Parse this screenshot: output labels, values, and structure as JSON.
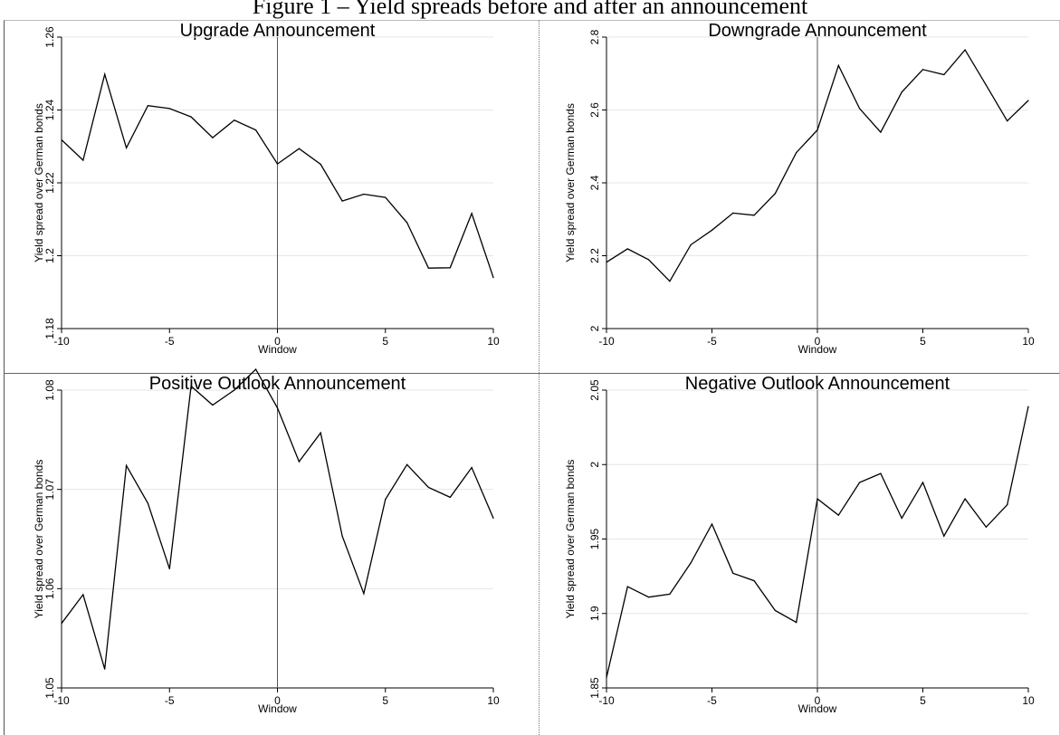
{
  "figure": {
    "title": "Figure 1 – Yield spreads before and after an announcement"
  },
  "colors": {
    "line": "#000000",
    "grid": "#e6e6e6",
    "event_line": "#555555"
  },
  "chart_data": [
    {
      "type": "line",
      "title": "Upgrade Announcement",
      "xlabel": "Window",
      "ylabel": "Yield spread over German bonds",
      "xlim": [
        -10,
        10
      ],
      "ylim": [
        1.18,
        1.26
      ],
      "xticks": [
        -10,
        -5,
        0,
        5,
        10
      ],
      "xtick_labels": [
        "-10",
        "-5",
        "0",
        "5",
        "10"
      ],
      "yticks": [
        1.18,
        1.2,
        1.22,
        1.24,
        1.26
      ],
      "ytick_labels": [
        "1.18",
        "1.2",
        "1.22",
        "1.24",
        "1.26"
      ],
      "event_x": 0,
      "grid": true,
      "x": [
        -10,
        -9,
        -8,
        -7,
        -6,
        -5,
        -4,
        -3,
        -2,
        -1,
        0,
        1,
        2,
        3,
        4,
        5,
        6,
        7,
        8,
        9,
        10
      ],
      "values": [
        1.2318,
        1.2262,
        1.2498,
        1.2296,
        1.2412,
        1.2404,
        1.2381,
        1.2324,
        1.2372,
        1.2345,
        1.2252,
        1.2294,
        1.2251,
        1.215,
        1.2169,
        1.216,
        1.2091,
        1.1966,
        1.1967,
        1.2116,
        1.194
      ]
    },
    {
      "type": "line",
      "title": "Downgrade Announcement",
      "xlabel": "Window",
      "ylabel": "Yield spread over German bonds",
      "xlim": [
        -10,
        10
      ],
      "ylim": [
        2,
        2.8
      ],
      "xticks": [
        -10,
        -5,
        0,
        5,
        10
      ],
      "xtick_labels": [
        "-10",
        "-5",
        "0",
        "5",
        "10"
      ],
      "yticks": [
        2,
        2.2,
        2.4,
        2.6,
        2.8
      ],
      "ytick_labels": [
        "2",
        "2.2",
        "2.4",
        "2.6",
        "2.8"
      ],
      "event_x": 0,
      "grid": true,
      "x": [
        -10,
        -9,
        -8,
        -7,
        -6,
        -5,
        -4,
        -3,
        -2,
        -1,
        0,
        1,
        2,
        3,
        4,
        5,
        6,
        7,
        8,
        9,
        10
      ],
      "values": [
        2.182,
        2.219,
        2.189,
        2.13,
        2.23,
        2.27,
        2.317,
        2.311,
        2.371,
        2.483,
        2.545,
        2.722,
        2.604,
        2.539,
        2.649,
        2.711,
        2.697,
        2.765,
        2.668,
        2.57,
        2.626
      ]
    },
    {
      "type": "line",
      "title": "Positive Outlook Announcement",
      "xlabel": "Window",
      "ylabel": "Yield spread over German bonds",
      "xlim": [
        -10,
        10
      ],
      "ylim": [
        1.05,
        1.08
      ],
      "xticks": [
        -10,
        -5,
        0,
        5,
        10
      ],
      "xtick_labels": [
        "-10",
        "-5",
        "0",
        "5",
        "10"
      ],
      "yticks": [
        1.05,
        1.06,
        1.07,
        1.08
      ],
      "ytick_labels": [
        "1.05",
        "1.06",
        "1.07",
        "1.08"
      ],
      "event_x": 0,
      "grid": true,
      "x": [
        -10,
        -9,
        -8,
        -7,
        -6,
        -5,
        -4,
        -3,
        -2,
        -1,
        0,
        1,
        2,
        3,
        4,
        5,
        6,
        7,
        8,
        9,
        10
      ],
      "values": [
        1.0565,
        1.0594,
        1.0519,
        1.0724,
        1.0686,
        1.062,
        1.0804,
        1.0785,
        1.08,
        1.0821,
        1.0782,
        1.0728,
        1.0757,
        1.0653,
        1.0595,
        1.069,
        1.0725,
        1.0702,
        1.0692,
        1.0722,
        1.0671
      ]
    },
    {
      "type": "line",
      "title": "Negative Outlook Announcement",
      "xlabel": "Window",
      "ylabel": "Yield spread over German bonds",
      "xlim": [
        -10,
        10
      ],
      "ylim": [
        1.85,
        2.05
      ],
      "xticks": [
        -10,
        -5,
        0,
        5,
        10
      ],
      "xtick_labels": [
        "-10",
        "-5",
        "0",
        "5",
        "10"
      ],
      "yticks": [
        1.85,
        1.9,
        1.95,
        2,
        2.05
      ],
      "ytick_labels": [
        "1.85",
        "1.9",
        "1.95",
        "2",
        "2.05"
      ],
      "event_x": 0,
      "grid": true,
      "x": [
        -10,
        -9,
        -8,
        -7,
        -6,
        -5,
        -4,
        -3,
        -2,
        -1,
        0,
        1,
        2,
        3,
        4,
        5,
        6,
        7,
        8,
        9,
        10
      ],
      "values": [
        1.857,
        1.918,
        1.911,
        1.913,
        1.934,
        1.96,
        1.927,
        1.922,
        1.902,
        1.894,
        1.977,
        1.966,
        1.988,
        1.994,
        1.964,
        1.988,
        1.952,
        1.977,
        1.958,
        1.973,
        2.039
      ]
    }
  ]
}
